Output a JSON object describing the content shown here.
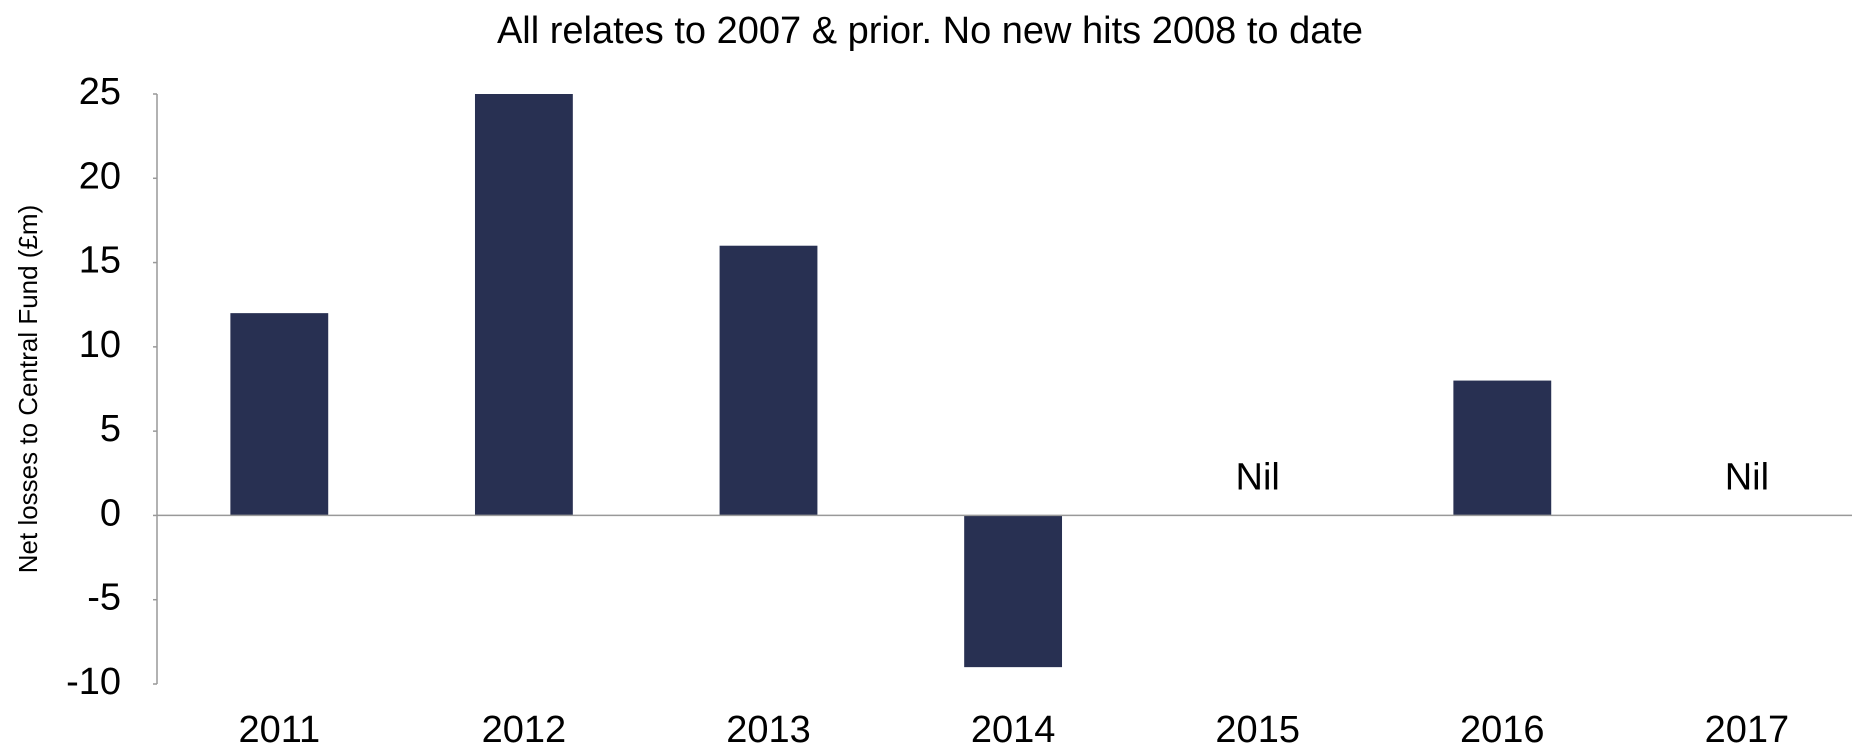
{
  "chart_data": {
    "type": "bar",
    "title": "All relates to 2007 & prior. No new hits 2008 to date",
    "y_label": "Net losses to Central Fund (£m)",
    "categories": [
      "2011",
      "2012",
      "2013",
      "2014",
      "2015",
      "2016",
      "2017"
    ],
    "values": [
      12,
      25,
      16,
      -9,
      0,
      8,
      0
    ],
    "value_labels": [
      null,
      null,
      null,
      null,
      "Nil",
      null,
      "Nil"
    ],
    "color": "#283052",
    "ylim": [
      -10,
      25
    ],
    "yticks": [
      -10,
      -5,
      0,
      5,
      10,
      15,
      20,
      25
    ],
    "grid": false
  }
}
